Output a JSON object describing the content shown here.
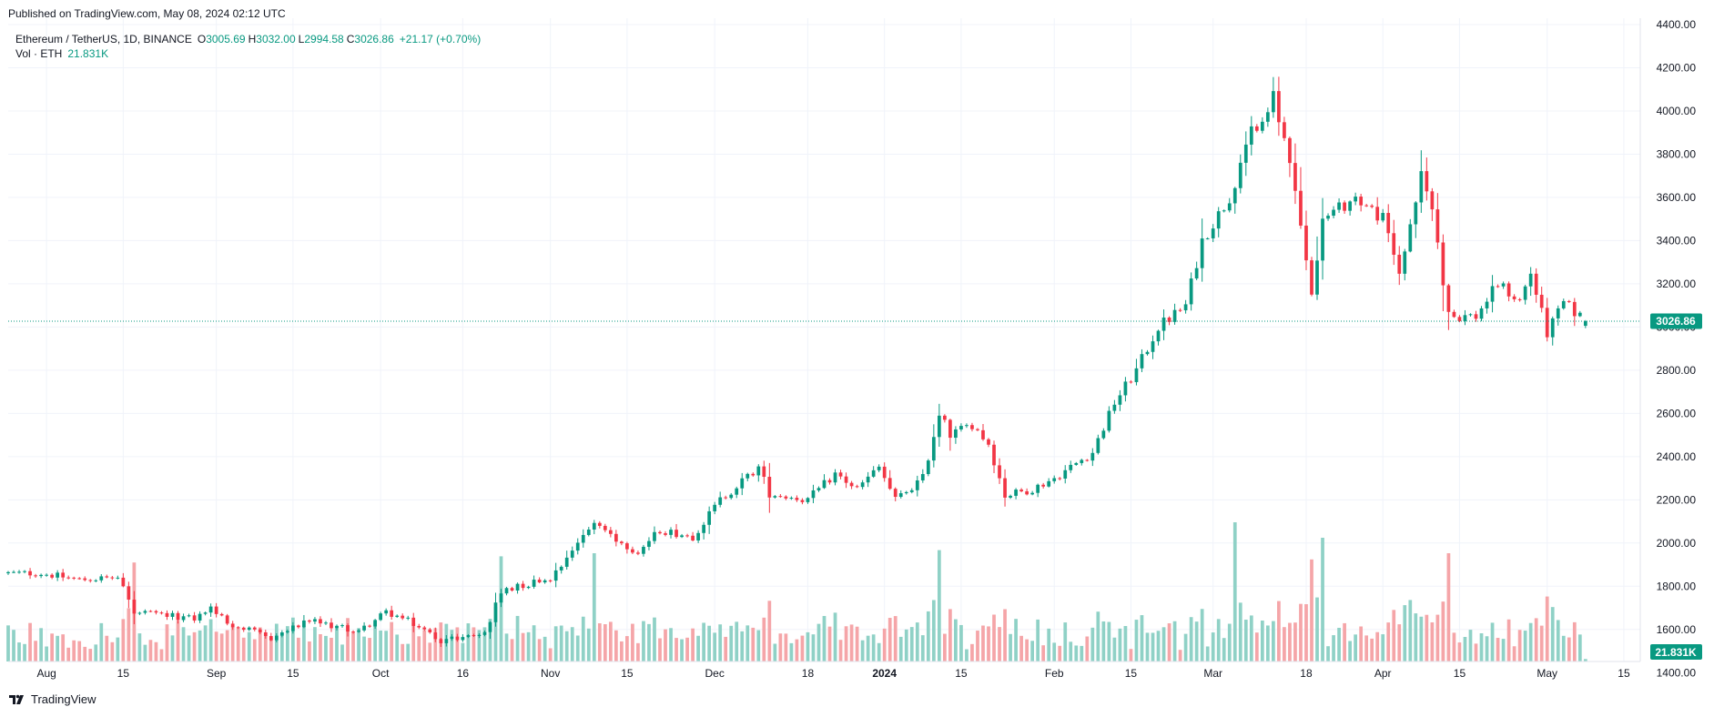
{
  "published": "Published on TradingView.com, May 08, 2024 02:12 UTC",
  "legend": {
    "symbol": "Ethereum / TetherUS, 1D, BINANCE",
    "open_label": "O",
    "open": "3005.69",
    "high_label": "H",
    "high": "3032.00",
    "low_label": "L",
    "low": "2994.58",
    "close_label": "C",
    "close": "3026.86",
    "change": "+21.17 (+0.70%)",
    "volume_label": "Vol · ETH",
    "volume": "21.831K"
  },
  "footer": {
    "brand": "TradingView",
    "logo_icon": "tradingview-logo-icon"
  },
  "colors": {
    "up": "#089981",
    "down": "#f23645",
    "up_volume": "#8fd1c6",
    "down_volume": "#f5a5a8",
    "grid": "#f0f3fa",
    "axis_text": "#131722"
  },
  "chart_data": {
    "type": "candlestick",
    "price_axis": {
      "min": 1300,
      "max": 4400,
      "ticks": [
        1400,
        1600,
        1800,
        2000,
        2200,
        2400,
        2600,
        2800,
        3000,
        3200,
        3400,
        3600,
        3800,
        4000,
        4200,
        4400
      ],
      "tick_labels": [
        "1400.00",
        "1600.00",
        "1800.00",
        "2000.00",
        "2200.00",
        "2400.00",
        "2600.00",
        "2800.00",
        "3000.00",
        "3200.00",
        "3400.00",
        "3600.00",
        "3800.00",
        "4000.00",
        "4200.00",
        "4400.00"
      ]
    },
    "x_axis": {
      "start": "2023-07-25",
      "end": "2024-05-18",
      "tick_dates": [
        "2023-08-01",
        "2023-08-15",
        "2023-09-01",
        "2023-09-15",
        "2023-10-01",
        "2023-10-16",
        "2023-11-01",
        "2023-11-15",
        "2023-12-01",
        "2023-12-18",
        "2024-01-01",
        "2024-01-15",
        "2024-02-01",
        "2024-02-15",
        "2024-03-01",
        "2024-03-18",
        "2024-04-01",
        "2024-04-15",
        "2024-05-01",
        "2024-05-15"
      ],
      "tick_labels": [
        "Aug",
        "15",
        "Sep",
        "15",
        "Oct",
        "16",
        "Nov",
        "15",
        "Dec",
        "18",
        "2024",
        "15",
        "Feb",
        "15",
        "Mar",
        "18",
        "Apr",
        "15",
        "May",
        "15"
      ],
      "bold_labels": [
        "2024"
      ]
    },
    "last_price": 3026.86,
    "last_price_label": "3026.86",
    "last_volume_label": "21.831K",
    "anchors": [
      {
        "date": "2023-07-25",
        "close": 1860
      },
      {
        "date": "2023-07-31",
        "close": 1860
      },
      {
        "date": "2023-08-07",
        "close": 1830
      },
      {
        "date": "2023-08-14",
        "close": 1840
      },
      {
        "date": "2023-08-17",
        "close": 1680
      },
      {
        "date": "2023-08-28",
        "close": 1650
      },
      {
        "date": "2023-08-31",
        "close": 1700
      },
      {
        "date": "2023-09-03",
        "close": 1630
      },
      {
        "date": "2023-09-11",
        "close": 1560
      },
      {
        "date": "2023-09-18",
        "close": 1640
      },
      {
        "date": "2023-09-27",
        "close": 1590
      },
      {
        "date": "2023-10-02",
        "close": 1680
      },
      {
        "date": "2023-10-06",
        "close": 1640
      },
      {
        "date": "2023-10-12",
        "close": 1550
      },
      {
        "date": "2023-10-20",
        "close": 1580
      },
      {
        "date": "2023-10-23",
        "close": 1780
      },
      {
        "date": "2023-11-01",
        "close": 1840
      },
      {
        "date": "2023-11-09",
        "close": 2100
      },
      {
        "date": "2023-11-14",
        "close": 2000
      },
      {
        "date": "2023-11-17",
        "close": 1960
      },
      {
        "date": "2023-11-21",
        "close": 2060
      },
      {
        "date": "2023-11-27",
        "close": 2030
      },
      {
        "date": "2023-12-02",
        "close": 2200
      },
      {
        "date": "2023-12-09",
        "close": 2350
      },
      {
        "date": "2023-12-11",
        "close": 2230
      },
      {
        "date": "2023-12-18",
        "close": 2200
      },
      {
        "date": "2023-12-23",
        "close": 2320
      },
      {
        "date": "2023-12-27",
        "close": 2250
      },
      {
        "date": "2023-12-31",
        "close": 2350
      },
      {
        "date": "2024-01-03",
        "close": 2200
      },
      {
        "date": "2024-01-08",
        "close": 2300
      },
      {
        "date": "2024-01-11",
        "close": 2600
      },
      {
        "date": "2024-01-13",
        "close": 2500
      },
      {
        "date": "2024-01-17",
        "close": 2550
      },
      {
        "date": "2024-01-20",
        "close": 2460
      },
      {
        "date": "2024-01-23",
        "close": 2220
      },
      {
        "date": "2024-01-28",
        "close": 2250
      },
      {
        "date": "2024-02-01",
        "close": 2300
      },
      {
        "date": "2024-02-08",
        "close": 2420
      },
      {
        "date": "2024-02-12",
        "close": 2650
      },
      {
        "date": "2024-02-16",
        "close": 2800
      },
      {
        "date": "2024-02-20",
        "close": 3000
      },
      {
        "date": "2024-02-25",
        "close": 3100
      },
      {
        "date": "2024-02-28",
        "close": 3400
      },
      {
        "date": "2024-03-04",
        "close": 3600
      },
      {
        "date": "2024-03-08",
        "close": 3900
      },
      {
        "date": "2024-03-12",
        "close": 4060
      },
      {
        "date": "2024-03-15",
        "close": 3750
      },
      {
        "date": "2024-03-19",
        "close": 3150
      },
      {
        "date": "2024-03-21",
        "close": 3500
      },
      {
        "date": "2024-03-27",
        "close": 3600
      },
      {
        "date": "2024-04-01",
        "close": 3500
      },
      {
        "date": "2024-04-04",
        "close": 3250
      },
      {
        "date": "2024-04-08",
        "close": 3700
      },
      {
        "date": "2024-04-10",
        "close": 3550
      },
      {
        "date": "2024-04-13",
        "close": 3050
      },
      {
        "date": "2024-04-18",
        "close": 3050
      },
      {
        "date": "2024-04-22",
        "close": 3200
      },
      {
        "date": "2024-04-26",
        "close": 3120
      },
      {
        "date": "2024-04-28",
        "close": 3250
      },
      {
        "date": "2024-05-01",
        "close": 2970
      },
      {
        "date": "2024-05-04",
        "close": 3110
      },
      {
        "date": "2024-05-06",
        "close": 3070
      },
      {
        "date": "2024-05-08",
        "close": 3026.86
      }
    ],
    "volume_spikes": [
      {
        "date": "2023-08-17",
        "value": 3.2
      },
      {
        "date": "2023-10-23",
        "value": 3.4
      },
      {
        "date": "2023-11-09",
        "value": 3.5
      },
      {
        "date": "2024-01-11",
        "value": 3.6
      },
      {
        "date": "2024-03-05",
        "value": 4.5
      },
      {
        "date": "2024-03-19",
        "value": 3.3
      },
      {
        "date": "2024-03-21",
        "value": 4.0
      },
      {
        "date": "2024-04-13",
        "value": 3.5
      }
    ]
  }
}
